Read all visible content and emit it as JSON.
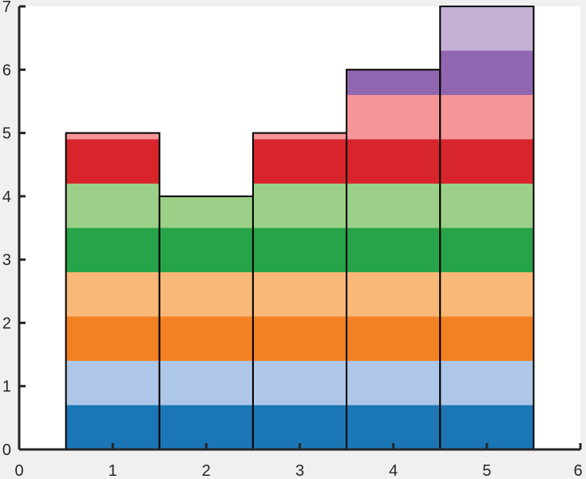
{
  "chart_data": {
    "type": "bar",
    "stacked": true,
    "categories": [
      1,
      2,
      3,
      4,
      5
    ],
    "xlim": [
      0,
      6
    ],
    "ylim": [
      0,
      7
    ],
    "xticks": [
      "0",
      "1",
      "2",
      "3",
      "4",
      "5",
      "6"
    ],
    "yticks": [
      "0",
      "1",
      "2",
      "3",
      "4",
      "5",
      "6",
      "7"
    ],
    "grid": false,
    "title": "",
    "xlabel": "",
    "ylabel": "",
    "series": [
      {
        "values": [
          0.7,
          0.7,
          0.7,
          0.7,
          0.7
        ],
        "color": "#1a76b4"
      },
      {
        "values": [
          0.7,
          0.7,
          0.7,
          0.7,
          0.7
        ],
        "color": "#aec7e8"
      },
      {
        "values": [
          0.7,
          0.7,
          0.7,
          0.7,
          0.7
        ],
        "color": "#f28123"
      },
      {
        "values": [
          0.7,
          0.7,
          0.7,
          0.7,
          0.7
        ],
        "color": "#f9b878"
      },
      {
        "values": [
          0.7,
          0.7,
          0.7,
          0.7,
          0.7
        ],
        "color": "#27a349"
      },
      {
        "values": [
          0.7,
          0.5,
          0.7,
          0.7,
          0.7
        ],
        "color": "#9ccf87"
      },
      {
        "values": [
          0.7,
          0,
          0.7,
          0.7,
          0.7
        ],
        "color": "#d7252b"
      },
      {
        "values": [
          0.1,
          0,
          0.1,
          0.7,
          0.7
        ],
        "color": "#f69597"
      },
      {
        "values": [
          0,
          0,
          0,
          0.4,
          0.7
        ],
        "color": "#9166b0"
      },
      {
        "values": [
          0,
          0,
          0,
          0,
          0.7
        ],
        "color": "#c5b0d6"
      }
    ],
    "bar_outline_color": "#000000",
    "background": "#f0f0f0",
    "plot_background": "#ffffff"
  }
}
